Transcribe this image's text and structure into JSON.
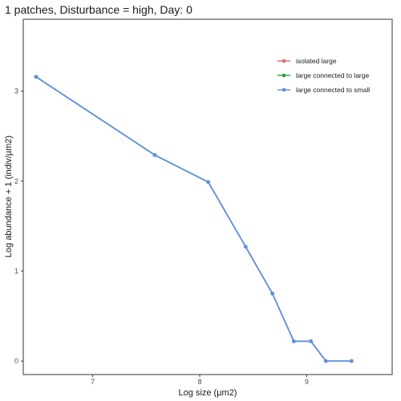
{
  "chart_data": {
    "type": "line",
    "title": "1 patches, Disturbance = high, Day: 0",
    "xlabel": "Log size (µm2)",
    "ylabel": "Log abundance + 1 (indiv/µm2)",
    "xlim": [
      6.35,
      9.8
    ],
    "ylim": [
      -0.15,
      3.8
    ],
    "x_ticks": [
      7,
      8,
      9
    ],
    "y_ticks": [
      0,
      1,
      2,
      3
    ],
    "grid": false,
    "legend_position": "top-right",
    "series": [
      {
        "name": "isolated large",
        "color": "#e8646a",
        "x": [
          6.47,
          7.58,
          8.08,
          8.43,
          8.68,
          8.88,
          9.04,
          9.18,
          9.42
        ],
        "y": [
          3.16,
          2.29,
          1.99,
          1.27,
          0.75,
          0.22,
          0.22,
          0.0,
          0.0
        ]
      },
      {
        "name": "large connected to large",
        "color": "#22a33a",
        "x": [
          6.47,
          7.58,
          8.08,
          8.43,
          8.68,
          8.88,
          9.04,
          9.18,
          9.42
        ],
        "y": [
          3.16,
          2.29,
          1.99,
          1.27,
          0.75,
          0.22,
          0.22,
          0.0,
          0.0
        ]
      },
      {
        "name": "large connected to small",
        "color": "#5b8ff0",
        "x": [
          6.47,
          7.58,
          8.08,
          8.43,
          8.68,
          8.88,
          9.04,
          9.18,
          9.42
        ],
        "y": [
          3.16,
          2.29,
          1.99,
          1.27,
          0.75,
          0.22,
          0.22,
          0.0,
          0.0
        ]
      }
    ]
  }
}
